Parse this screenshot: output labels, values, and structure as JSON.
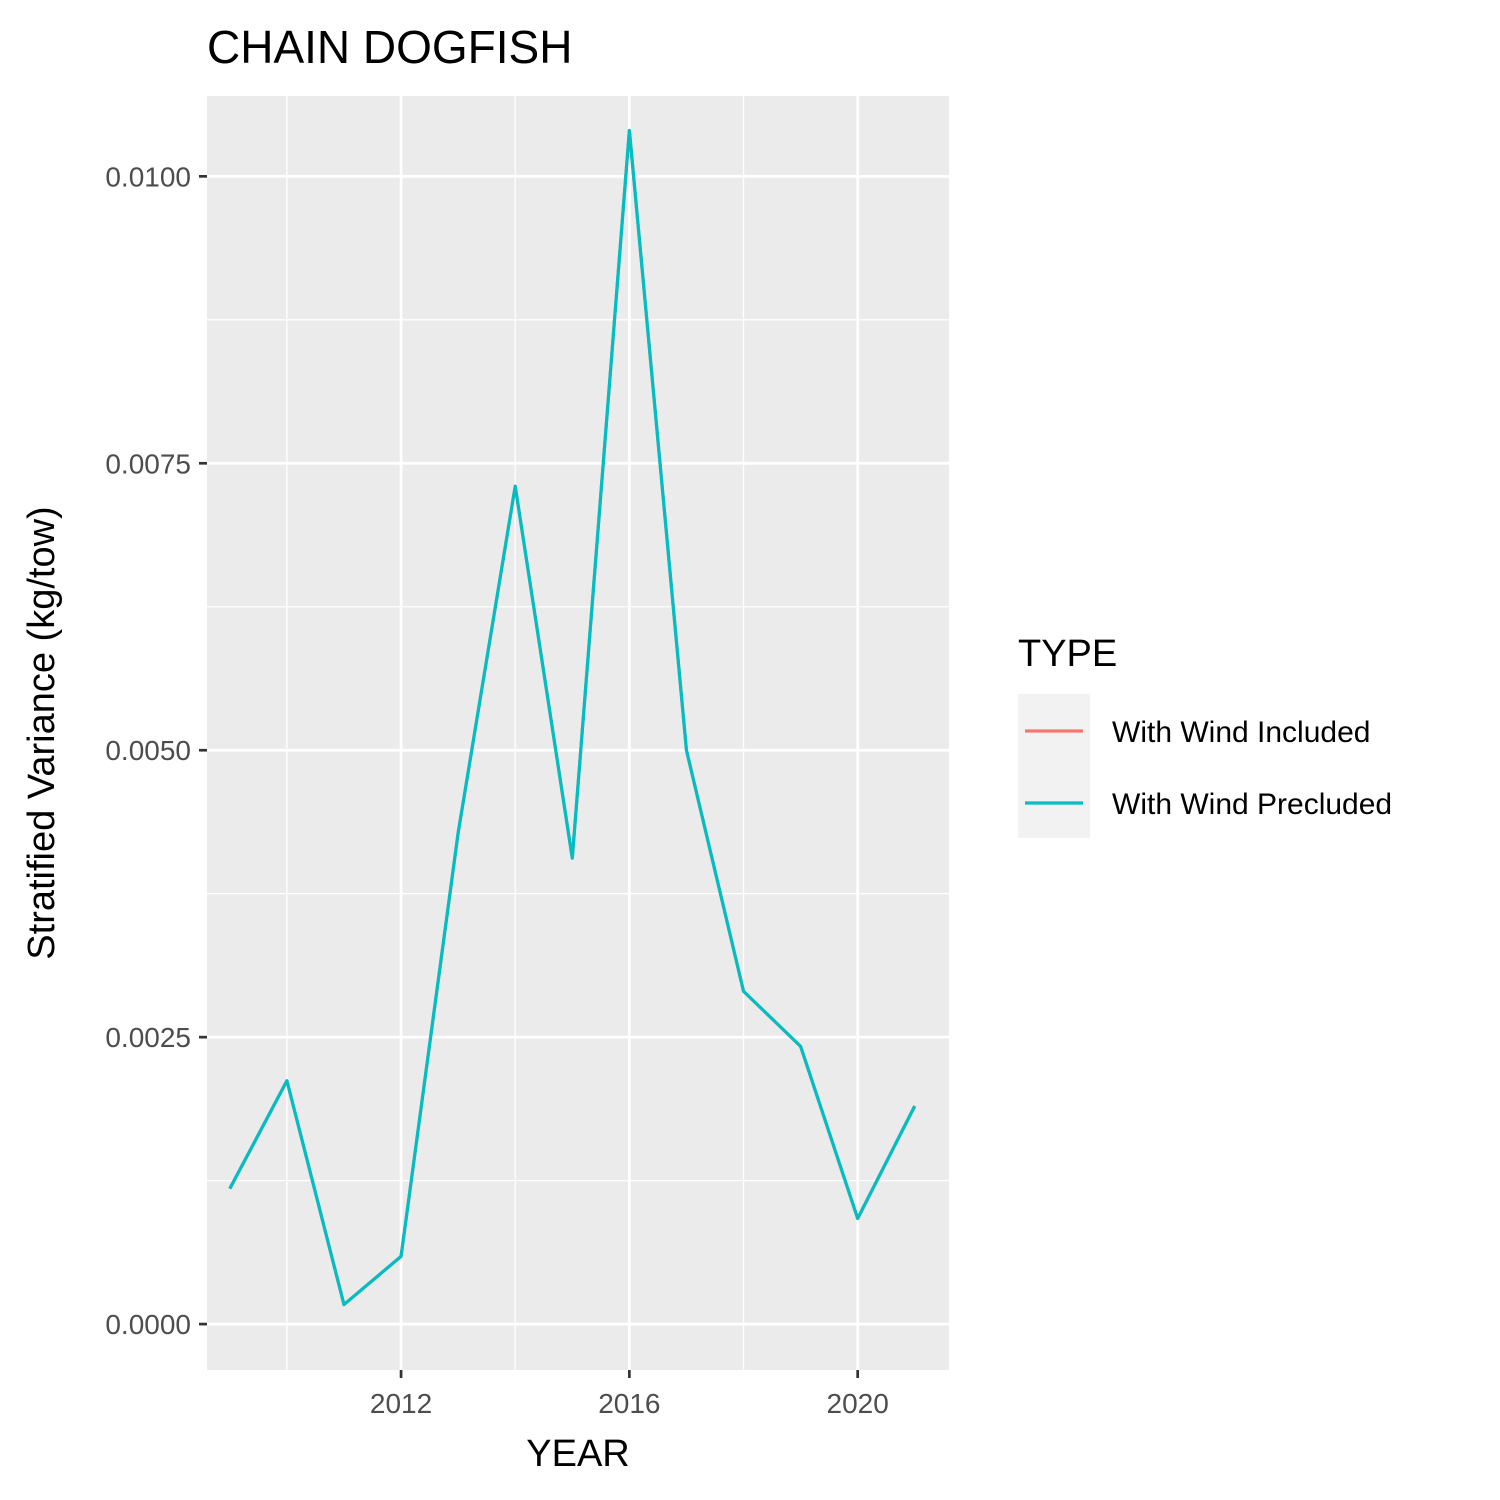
{
  "chart_data": {
    "type": "line",
    "title": "CHAIN DOGFISH",
    "xlabel": "YEAR",
    "ylabel": "Stratified Variance (kg/tow)",
    "xlim": [
      2008.6,
      2021.6
    ],
    "ylim": [
      -0.0004,
      0.0107
    ],
    "x_ticks": [
      2012,
      2016,
      2020
    ],
    "x_tick_labels": [
      "2012",
      "2016",
      "2020"
    ],
    "y_ticks": [
      0.0,
      0.0025,
      0.005,
      0.0075,
      0.01
    ],
    "y_tick_labels": [
      "0.0000",
      "0.0025",
      "0.0050",
      "0.0075",
      "0.0100"
    ],
    "grid": true,
    "legend": {
      "title": "TYPE",
      "position": "right"
    },
    "x": [
      2009,
      2010,
      2011,
      2012,
      2013,
      2014,
      2015,
      2016,
      2017,
      2018,
      2019,
      2020,
      2021
    ],
    "series": [
      {
        "name": "With Wind Included",
        "color": "#F8766D",
        "values": [
          0.00118,
          0.00212,
          0.00017,
          0.00059,
          0.00428,
          0.0073,
          0.00406,
          0.0104,
          0.005,
          0.0029,
          0.00242,
          0.00092,
          0.0019
        ]
      },
      {
        "name": "With Wind Precluded",
        "color": "#00BFC4",
        "values": [
          0.00118,
          0.00212,
          0.00017,
          0.00059,
          0.00428,
          0.0073,
          0.00406,
          0.0104,
          0.005,
          0.0029,
          0.00242,
          0.00092,
          0.0019
        ]
      }
    ]
  }
}
